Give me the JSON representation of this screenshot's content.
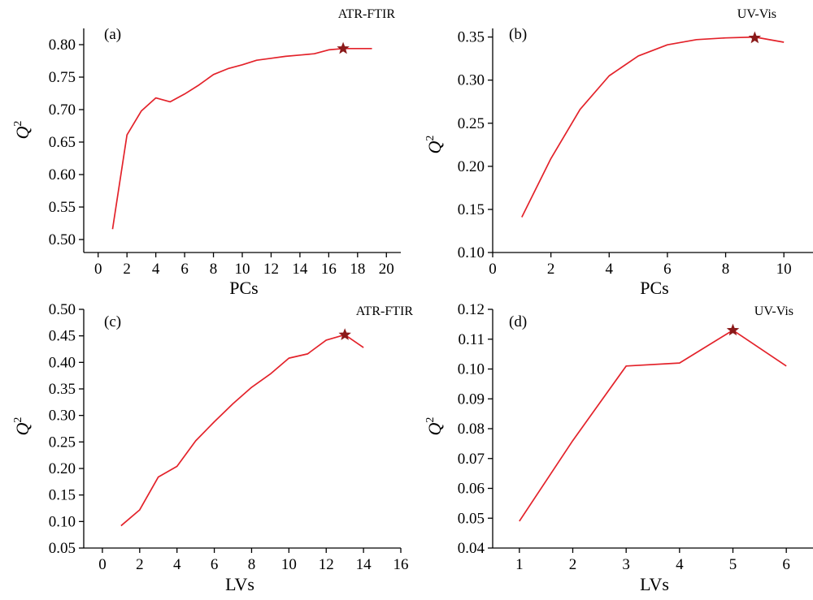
{
  "chart_data": [
    {
      "type": "line",
      "panel_label": "(a)",
      "annotation": "ATR-FTIR",
      "xlabel": "PCs",
      "ylabel": "Q",
      "ylabel_superscript": "2",
      "xlim": [
        -1,
        21
      ],
      "ylim": [
        0.48,
        0.825
      ],
      "x_ticks": [
        0,
        2,
        4,
        6,
        8,
        10,
        12,
        14,
        16,
        18,
        20
      ],
      "x_tick_labels": [
        "0",
        "2",
        "4",
        "6",
        "8",
        "10",
        "12",
        "14",
        "16",
        "18",
        "20"
      ],
      "y_ticks": [
        0.5,
        0.55,
        0.6,
        0.65,
        0.7,
        0.75,
        0.8
      ],
      "y_tick_labels": [
        "0.50",
        "0.55",
        "0.60",
        "0.65",
        "0.70",
        "0.75",
        "0.80"
      ],
      "series": [
        {
          "color": "#e3222a",
          "x": [
            1,
            2,
            3,
            4,
            5,
            6,
            7,
            8,
            9,
            10,
            11,
            12,
            13,
            14,
            15,
            16,
            17,
            18,
            19
          ],
          "y": [
            0.516,
            0.661,
            0.698,
            0.718,
            0.712,
            0.724,
            0.738,
            0.754,
            0.763,
            0.769,
            0.776,
            0.779,
            0.782,
            0.784,
            0.786,
            0.792,
            0.794,
            0.794,
            0.794
          ]
        }
      ],
      "marker": {
        "x": 17,
        "y": 0.794,
        "shape": "star",
        "color": "#8b1a1a"
      }
    },
    {
      "type": "line",
      "panel_label": "(b)",
      "annotation": "UV-Vis",
      "xlabel": "PCs",
      "ylabel": "Q",
      "ylabel_superscript": "2",
      "xlim": [
        0,
        11
      ],
      "ylim": [
        0.1,
        0.36
      ],
      "x_ticks": [
        0,
        2,
        4,
        6,
        8,
        10
      ],
      "x_tick_labels": [
        "0",
        "2",
        "4",
        "6",
        "8",
        "10"
      ],
      "y_ticks": [
        0.1,
        0.15,
        0.2,
        0.25,
        0.3,
        0.35
      ],
      "y_tick_labels": [
        "0.10",
        "0.15",
        "0.20",
        "0.25",
        "0.30",
        "0.35"
      ],
      "series": [
        {
          "color": "#e3222a",
          "x": [
            1,
            2,
            3,
            4,
            5,
            6,
            7,
            8,
            9,
            10
          ],
          "y": [
            0.141,
            0.209,
            0.266,
            0.305,
            0.328,
            0.341,
            0.347,
            0.349,
            0.35,
            0.344
          ]
        }
      ],
      "marker": {
        "x": 9,
        "y": 0.349,
        "shape": "star",
        "color": "#8b1a1a"
      }
    },
    {
      "type": "line",
      "panel_label": "(c)",
      "annotation": "ATR-FTIR",
      "xlabel": "LVs",
      "ylabel": "Q",
      "ylabel_superscript": "2",
      "xlim": [
        -1,
        16
      ],
      "ylim": [
        0.05,
        0.5
      ],
      "x_ticks": [
        0,
        2,
        4,
        6,
        8,
        10,
        12,
        14,
        16
      ],
      "x_tick_labels": [
        "0",
        "2",
        "4",
        "6",
        "8",
        "10",
        "12",
        "14",
        "16"
      ],
      "y_ticks": [
        0.05,
        0.1,
        0.15,
        0.2,
        0.25,
        0.3,
        0.35,
        0.4,
        0.45,
        0.5
      ],
      "y_tick_labels": [
        "0.05",
        "0.10",
        "0.15",
        "0.20",
        "0.25",
        "0.30",
        "0.35",
        "0.40",
        "0.45",
        "0.50"
      ],
      "series": [
        {
          "color": "#e3222a",
          "x": [
            1,
            2,
            3,
            4,
            5,
            6,
            7,
            8,
            9,
            10,
            11,
            12,
            13,
            14
          ],
          "y": [
            0.092,
            0.122,
            0.184,
            0.204,
            0.252,
            0.288,
            0.322,
            0.353,
            0.378,
            0.408,
            0.416,
            0.442,
            0.452,
            0.428
          ]
        }
      ],
      "marker": {
        "x": 13,
        "y": 0.452,
        "shape": "star",
        "color": "#8b1a1a"
      }
    },
    {
      "type": "line",
      "panel_label": "(d)",
      "annotation": "UV-Vis",
      "xlabel": "LVs",
      "ylabel": "Q",
      "ylabel_superscript": "2",
      "xlim": [
        0.5,
        6.5
      ],
      "ylim": [
        0.04,
        0.12
      ],
      "x_ticks": [
        1,
        2,
        3,
        4,
        5,
        6
      ],
      "x_tick_labels": [
        "1",
        "2",
        "3",
        "4",
        "5",
        "6"
      ],
      "y_ticks": [
        0.04,
        0.05,
        0.06,
        0.07,
        0.08,
        0.09,
        0.1,
        0.11,
        0.12
      ],
      "y_tick_labels": [
        "0.04",
        "0.05",
        "0.06",
        "0.07",
        "0.08",
        "0.09",
        "0.10",
        "0.11",
        "0.12"
      ],
      "series": [
        {
          "color": "#e3222a",
          "x": [
            1,
            2,
            3,
            4,
            5,
            6
          ],
          "y": [
            0.049,
            0.076,
            0.101,
            0.102,
            0.113,
            0.101
          ]
        }
      ],
      "marker": {
        "x": 5,
        "y": 0.113,
        "shape": "star",
        "color": "#8b1a1a"
      }
    }
  ]
}
